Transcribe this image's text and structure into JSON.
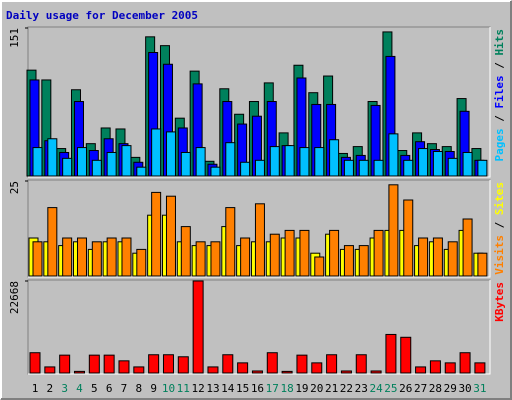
{
  "chart_data": [
    {
      "type": "bar",
      "title": "Daily usage for December 2005",
      "ylim": [
        0,
        151
      ],
      "yticks": [
        151
      ],
      "legend_separator": " / ",
      "series": [
        {
          "name": "Hits",
          "color": "#00805c",
          "values": [
            108,
            98,
            28,
            88,
            33,
            49,
            48,
            19,
            142,
            133,
            59,
            107,
            15,
            89,
            63,
            76,
            95,
            44,
            113,
            85,
            102,
            23,
            30,
            76,
            147,
            26,
            44,
            33,
            30,
            79,
            28
          ]
        },
        {
          "name": "Files",
          "color": "#0000ff",
          "values": [
            98,
            36,
            24,
            76,
            26,
            38,
            33,
            14,
            126,
            114,
            49,
            94,
            12,
            76,
            53,
            61,
            76,
            31,
            100,
            73,
            73,
            19,
            21,
            72,
            122,
            21,
            35,
            27,
            25,
            66,
            16
          ]
        },
        {
          "name": "Pages",
          "color": "#00c0ff",
          "values": [
            29,
            38,
            18,
            29,
            16,
            24,
            31,
            9,
            48,
            45,
            24,
            29,
            9,
            34,
            14,
            16,
            30,
            31,
            29,
            29,
            37,
            16,
            16,
            16,
            43,
            16,
            28,
            25,
            18,
            24,
            16
          ]
        }
      ]
    },
    {
      "type": "bar",
      "ylim": [
        0,
        25
      ],
      "yticks": [
        25
      ],
      "legend_separator": " / ",
      "series": [
        {
          "name": "Sites",
          "color": "#ffff00",
          "values": [
            10,
            9,
            8,
            9,
            7,
            9,
            9,
            6,
            16,
            16,
            9,
            8,
            8,
            13,
            8,
            9,
            9,
            10,
            10,
            6,
            11,
            7,
            7,
            10,
            12,
            12,
            8,
            9,
            7,
            12,
            6
          ]
        },
        {
          "name": "Visits",
          "color": "#ff8000",
          "values": [
            9,
            18,
            10,
            10,
            9,
            10,
            10,
            7,
            22,
            21,
            13,
            9,
            9,
            18,
            10,
            19,
            11,
            12,
            12,
            5,
            12,
            8,
            8,
            12,
            24,
            20,
            10,
            10,
            9,
            15,
            6
          ]
        }
      ]
    },
    {
      "type": "bar",
      "ylim": [
        0,
        22668
      ],
      "yticks": [
        22668
      ],
      "categories": [
        "1",
        "2",
        "3",
        "4",
        "5",
        "6",
        "7",
        "8",
        "9",
        "10",
        "11",
        "12",
        "13",
        "14",
        "15",
        "16",
        "17",
        "18",
        "19",
        "20",
        "21",
        "22",
        "23",
        "24",
        "25",
        "26",
        "27",
        "28",
        "29",
        "30",
        "31"
      ],
      "label_colors": [
        "#000000",
        "#000000",
        "#00805c",
        "#00805c",
        "#000000",
        "#000000",
        "#000000",
        "#000000",
        "#000000",
        "#00805c",
        "#00805c",
        "#000000",
        "#000000",
        "#000000",
        "#000000",
        "#000000",
        "#00805c",
        "#00805c",
        "#000000",
        "#000000",
        "#000000",
        "#000000",
        "#000000",
        "#00805c",
        "#00805c",
        "#000000",
        "#000000",
        "#000000",
        "#000000",
        "#000000",
        "#00805c"
      ],
      "series": [
        {
          "name": "KBytes",
          "color": "#ff0000",
          "values": [
            5000,
            1500,
            4400,
            400,
            4400,
            4400,
            3000,
            1500,
            4500,
            4500,
            4000,
            22668,
            1500,
            4500,
            2500,
            500,
            5000,
            400,
            4400,
            2500,
            4500,
            500,
            4500,
            500,
            9500,
            8800,
            1500,
            3000,
            2500,
            5000,
            2500
          ]
        }
      ]
    }
  ]
}
